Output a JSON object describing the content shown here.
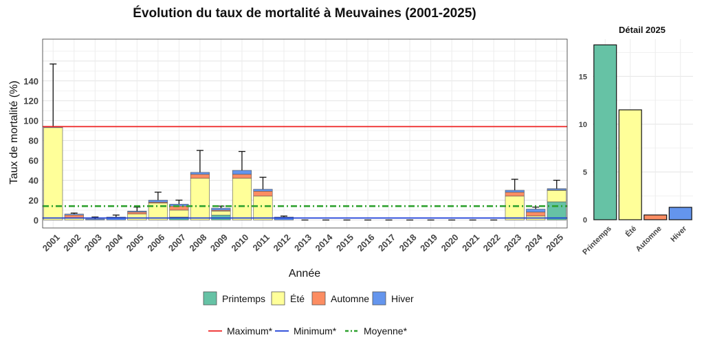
{
  "chart_data": [
    {
      "type": "bar",
      "stacked": true,
      "title": "Évolution du taux de mortalité à Meuvaines (2001-2025)",
      "xlabel": "Année",
      "ylabel": "Taux de mortalité (%)",
      "ylim": [
        -8,
        182
      ],
      "yticks": [
        0,
        20,
        40,
        60,
        80,
        100,
        120,
        140
      ],
      "grid": true,
      "categories": [
        "2001",
        "2002",
        "2003",
        "2004",
        "2005",
        "2006",
        "2007",
        "2008",
        "2009",
        "2010",
        "2011",
        "2012",
        "2013",
        "2014",
        "2015",
        "2016",
        "2017",
        "2018",
        "2019",
        "2020",
        "2021",
        "2022",
        "2023",
        "2024",
        "2025"
      ],
      "series": [
        {
          "name": "Printemps",
          "color": "#66c2a5",
          "values": [
            0,
            0,
            0,
            0,
            0,
            0,
            3,
            0,
            5,
            0,
            0,
            0,
            0,
            0,
            0,
            0,
            0,
            0,
            0,
            0,
            0,
            0,
            0,
            0,
            18.3
          ]
        },
        {
          "name": "Été",
          "color": "#ffff99",
          "values": [
            93,
            2,
            0,
            0,
            6,
            17,
            7,
            42,
            4,
            42,
            24,
            0,
            0,
            0,
            0,
            0,
            0,
            0,
            0,
            0,
            0,
            0,
            24,
            4,
            11.5
          ]
        },
        {
          "name": "Automne",
          "color": "#fc8d62",
          "values": [
            0,
            3,
            0,
            0,
            2,
            1,
            4,
            4,
            1,
            4,
            5,
            0,
            0,
            0,
            0,
            0,
            0,
            0,
            0,
            0,
            0,
            0,
            4,
            4,
            0.5
          ]
        },
        {
          "name": "Hiver",
          "color": "#6495ed",
          "values": [
            1,
            1,
            1,
            3,
            1,
            2,
            2,
            2,
            2,
            4,
            2,
            3,
            0,
            0,
            0,
            0,
            0,
            0,
            0,
            0,
            0,
            0,
            2,
            3,
            1.3
          ]
        }
      ],
      "error_max": [
        157,
        7,
        3,
        5,
        13,
        28,
        20,
        70,
        14,
        69,
        43,
        4,
        0,
        0,
        0,
        0,
        0,
        0,
        0,
        0,
        0,
        0,
        41,
        13,
        40
      ],
      "reference_lines": [
        {
          "name": "Maximum*",
          "color": "#ee2222",
          "style": "solid",
          "value": 94
        },
        {
          "name": "Minimum*",
          "color": "#1a3cd6",
          "style": "solid",
          "value": 2
        },
        {
          "name": "Moyenne*",
          "color": "#2ca02c",
          "style": "dashdot",
          "value": 14
        }
      ],
      "legend": {
        "position": "bottom",
        "seasons": [
          "Printemps",
          "Été",
          "Automne",
          "Hiver"
        ],
        "lines": [
          "Maximum*",
          "Minimum*",
          "Moyenne*"
        ]
      }
    },
    {
      "type": "bar",
      "title": "Détail 2025",
      "ylim": [
        0,
        18.9
      ],
      "yticks": [
        0,
        5,
        10,
        15
      ],
      "grid": true,
      "categories": [
        "Printemps",
        "Été",
        "Automne",
        "Hiver"
      ],
      "values": [
        18.3,
        11.5,
        0.5,
        1.3
      ],
      "colors": [
        "#66c2a5",
        "#ffff99",
        "#fc8d62",
        "#6495ed"
      ]
    }
  ]
}
